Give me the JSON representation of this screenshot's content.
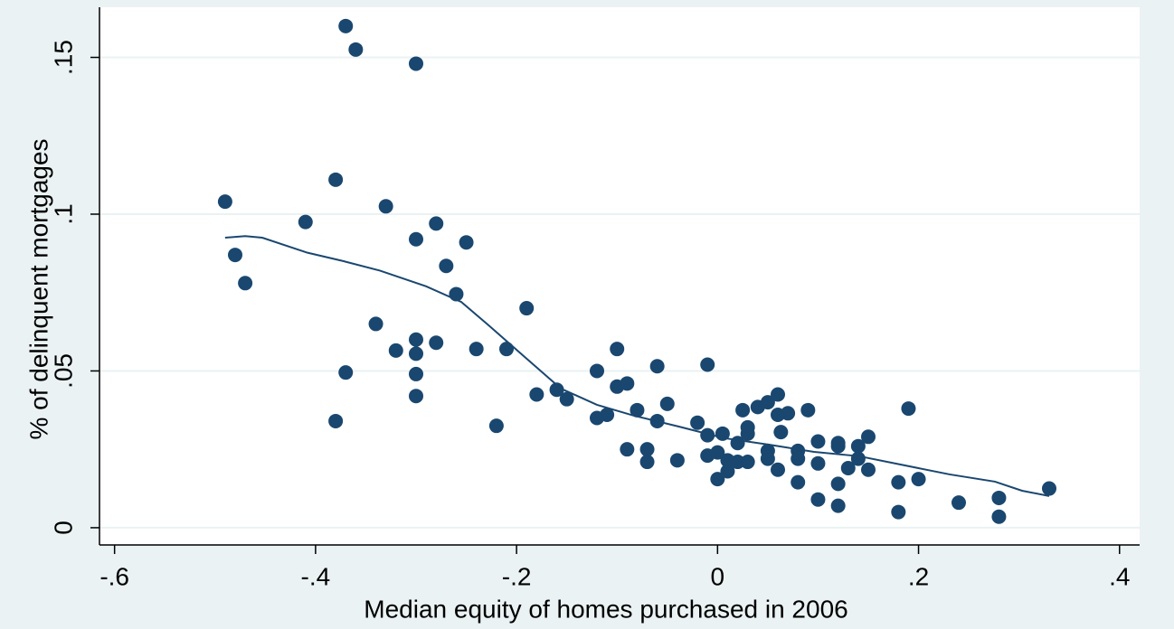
{
  "chart_data": {
    "type": "scatter",
    "x_label": "Median equity of homes purchased in 2006",
    "y_label": "% of delinquent mortgages",
    "xlim": [
      -0.615,
      0.42
    ],
    "ylim": [
      -0.0055,
      0.166
    ],
    "xticks": [
      {
        "value": -0.6,
        "label": "-.6"
      },
      {
        "value": -0.4,
        "label": "-.4"
      },
      {
        "value": -0.2,
        "label": "-.2"
      },
      0,
      {
        "value": 0.2,
        "label": ".2"
      },
      {
        "value": 0.4,
        "label": ".4"
      }
    ],
    "yticks": [
      0,
      {
        "value": 0.05,
        "label": ".05"
      },
      {
        "value": 0.1,
        "label": ".1"
      },
      {
        "value": 0.15,
        "label": ".15"
      }
    ],
    "grid": true,
    "series": [
      {
        "type": "scatter",
        "color": "#1a476f",
        "x": [
          -0.49,
          -0.48,
          -0.47,
          -0.41,
          -0.37,
          -0.36,
          -0.38,
          -0.33,
          -0.34,
          -0.37,
          -0.38,
          -0.32,
          -0.3,
          -0.3,
          -0.3,
          -0.3,
          -0.3,
          -0.3,
          -0.28,
          -0.28,
          -0.27,
          -0.26,
          -0.25,
          -0.24,
          -0.22,
          -0.21,
          -0.19,
          -0.18,
          -0.16,
          -0.15,
          -0.12,
          -0.12,
          -0.11,
          -0.1,
          -0.1,
          -0.09,
          -0.09,
          -0.08,
          -0.07,
          -0.07,
          -0.06,
          -0.06,
          -0.05,
          -0.04,
          -0.02,
          -0.01,
          -0.01,
          -0.01,
          0,
          0,
          0.005,
          0.01,
          0.01,
          0.02,
          0.02,
          0.025,
          0.03,
          0.03,
          0.03,
          0.04,
          0.05,
          0.05,
          0.05,
          0.06,
          0.06,
          0.06,
          0.063,
          0.07,
          0.08,
          0.08,
          0.08,
          0.09,
          0.1,
          0.1,
          0.1,
          0.12,
          0.12,
          0.12,
          0.12,
          0.13,
          0.14,
          0.14,
          0.15,
          0.15,
          0.18,
          0.18,
          0.19,
          0.2,
          0.24,
          0.28,
          0.28,
          0.33
        ],
        "values": [
          0.104,
          0.087,
          0.078,
          0.0975,
          0.16,
          0.1525,
          0.111,
          0.1025,
          0.065,
          0.0495,
          0.034,
          0.0565,
          0.148,
          0.092,
          0.06,
          0.0555,
          0.049,
          0.042,
          0.097,
          0.059,
          0.0835,
          0.0745,
          0.091,
          0.057,
          0.0325,
          0.057,
          0.07,
          0.0425,
          0.044,
          0.041,
          0.05,
          0.035,
          0.036,
          0.057,
          0.045,
          0.046,
          0.025,
          0.0375,
          0.025,
          0.021,
          0.0515,
          0.034,
          0.0395,
          0.0215,
          0.0335,
          0.052,
          0.0295,
          0.023,
          0.024,
          0.0155,
          0.03,
          0.0215,
          0.018,
          0.027,
          0.021,
          0.0375,
          0.032,
          0.03,
          0.021,
          0.0385,
          0.04,
          0.0245,
          0.022,
          0.0425,
          0.036,
          0.0185,
          0.0305,
          0.0365,
          0.0245,
          0.022,
          0.0145,
          0.0375,
          0.0275,
          0.0205,
          0.009,
          0.027,
          0.026,
          0.014,
          0.007,
          0.019,
          0.026,
          0.022,
          0.029,
          0.0185,
          0.0145,
          0.005,
          0.038,
          0.0155,
          0.008,
          0.0095,
          0.0035,
          0.0125
        ]
      },
      {
        "type": "line",
        "color": "#1a476f",
        "x": [
          -0.49,
          -0.47,
          -0.453,
          -0.408,
          -0.372,
          -0.336,
          -0.29,
          -0.255,
          -0.228,
          -0.192,
          -0.156,
          -0.12,
          -0.084,
          -0.039,
          0.006,
          0.051,
          0.096,
          0.141,
          0.186,
          0.231,
          0.276,
          0.303,
          0.33
        ],
        "values": [
          0.0925,
          0.093,
          0.0925,
          0.0877,
          0.085,
          0.082,
          0.077,
          0.072,
          0.0646,
          0.0545,
          0.0444,
          0.0392,
          0.0358,
          0.0323,
          0.0286,
          0.0265,
          0.0242,
          0.0228,
          0.0199,
          0.017,
          0.0147,
          0.0118,
          0.0101
        ]
      }
    ]
  }
}
